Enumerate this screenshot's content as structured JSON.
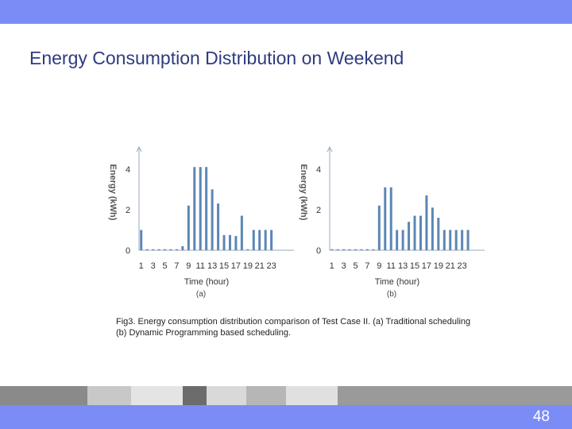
{
  "slide": {
    "title": "Energy Consumption Distribution on Weekend",
    "caption_line1": "Fig3. Energy consumption distribution comparison of Test Case II. (a) Traditional scheduling",
    "caption_line2": "(b) Dynamic Programming based scheduling.",
    "page_number": "48"
  },
  "colors": {
    "bar": "#5b87b4",
    "banner": "#7b8cf7",
    "axis": "#9aaac0"
  },
  "chart_data": [
    {
      "type": "bar",
      "panel_label": "(a)",
      "xlabel": "Time (hour)",
      "ylabel": "Energy (kWh)",
      "ylim": [
        0,
        4.5
      ],
      "yticks": [
        "0",
        "2",
        "4"
      ],
      "categories": [
        1,
        2,
        3,
        4,
        5,
        6,
        7,
        8,
        9,
        10,
        11,
        12,
        13,
        14,
        15,
        16,
        17,
        18,
        19,
        20,
        21,
        22,
        23,
        24
      ],
      "xtick_labels": [
        "1",
        "3",
        "5",
        "7",
        "9",
        "11",
        "13",
        "15",
        "17",
        "19",
        "21",
        "23"
      ],
      "values": [
        1.0,
        0.05,
        0.05,
        0.05,
        0.05,
        0.05,
        0.05,
        0.2,
        2.2,
        4.1,
        4.1,
        4.1,
        3.0,
        2.3,
        0.75,
        0.75,
        0.7,
        1.7,
        0.05,
        1.0,
        1.0,
        1.0,
        1.0,
        0
      ]
    },
    {
      "type": "bar",
      "panel_label": "(b)",
      "xlabel": "Time (hour)",
      "ylabel": "Energy (kWh)",
      "ylim": [
        0,
        4.5
      ],
      "yticks": [
        "0",
        "2",
        "4"
      ],
      "categories": [
        1,
        2,
        3,
        4,
        5,
        6,
        7,
        8,
        9,
        10,
        11,
        12,
        13,
        14,
        15,
        16,
        17,
        18,
        19,
        20,
        21,
        22,
        23,
        24
      ],
      "xtick_labels": [
        "1",
        "3",
        "5",
        "7",
        "9",
        "11",
        "13",
        "15",
        "17",
        "19",
        "21",
        "23"
      ],
      "values": [
        0.05,
        0.05,
        0.05,
        0.05,
        0.05,
        0.05,
        0.05,
        0.05,
        2.2,
        3.1,
        3.1,
        1.0,
        1.0,
        1.4,
        1.7,
        1.7,
        2.7,
        2.1,
        1.6,
        1.0,
        1.0,
        1.0,
        1.0,
        1.0
      ]
    }
  ]
}
